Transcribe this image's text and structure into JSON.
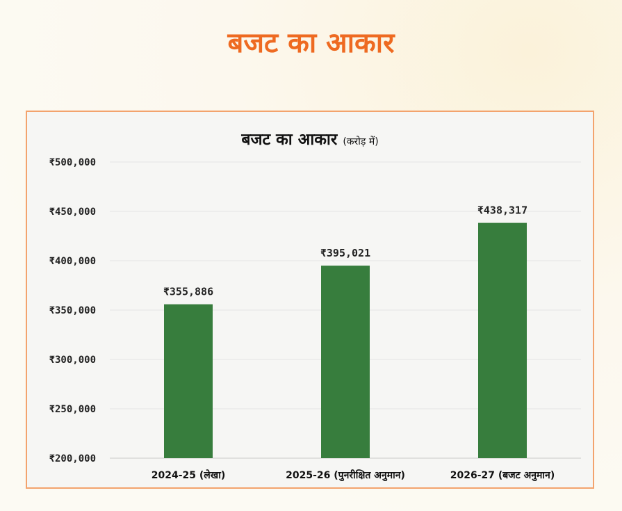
{
  "page": {
    "title": "बजट का आकार"
  },
  "chart_data": {
    "type": "bar",
    "title": "बजट का आकार",
    "title_unit": "(करोड़ में)",
    "categories": [
      "2024-25 (लेखा)",
      "2025-26 (पुनरीक्षित अनुमान)",
      "2026-27 (बजट अनुमान)"
    ],
    "values": [
      355886,
      395021,
      438317
    ],
    "value_labels": [
      "₹355,886",
      "₹395,021",
      "₹438,317"
    ],
    "y_ticks": [
      200000,
      250000,
      300000,
      350000,
      400000,
      450000,
      500000
    ],
    "y_tick_labels": [
      "₹200,000",
      "₹250,000",
      "₹300,000",
      "₹350,000",
      "₹400,000",
      "₹450,000",
      "₹500,000"
    ],
    "ylim": [
      200000,
      500000
    ],
    "xlabel": "",
    "ylabel": "",
    "grid": true,
    "bar_color": "#377d3d"
  }
}
